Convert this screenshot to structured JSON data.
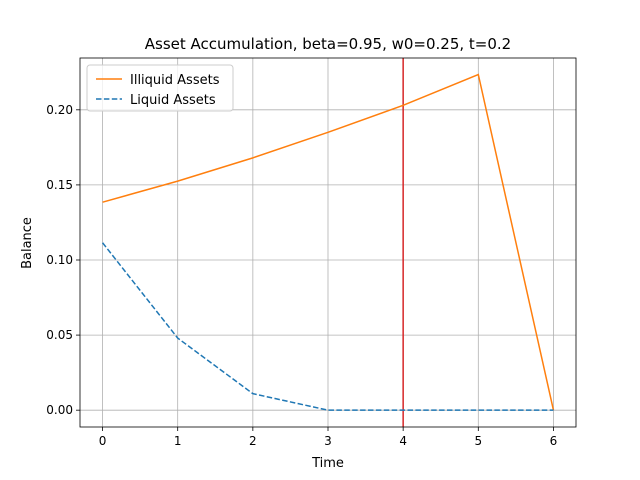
{
  "chart_data": {
    "type": "line",
    "title": "Asset Accumulation, beta=0.95, w0=0.25, t=0.2",
    "xlabel": "Time",
    "ylabel": "Balance",
    "x": [
      0,
      1,
      2,
      3,
      4,
      5,
      6
    ],
    "xlim": [
      -0.3,
      6.3
    ],
    "ylim": [
      -0.0112,
      0.2345
    ],
    "xticks": [
      0,
      1,
      2,
      3,
      4,
      5,
      6
    ],
    "xtick_labels": [
      "0",
      "1",
      "2",
      "3",
      "4",
      "5",
      "6"
    ],
    "yticks": [
      0.0,
      0.05,
      0.1,
      0.15,
      0.2
    ],
    "ytick_labels": [
      "0.00",
      "0.05",
      "0.10",
      "0.15",
      "0.20"
    ],
    "grid": true,
    "legend_position": "top-left",
    "series": [
      {
        "name": "Illiquid Assets",
        "values": [
          0.1385,
          0.1525,
          0.168,
          0.185,
          0.203,
          0.2235,
          0.0
        ],
        "color": "#ff7f0e",
        "style": "solid"
      },
      {
        "name": "Liquid Assets",
        "values": [
          0.1115,
          0.048,
          0.011,
          0.0,
          0.0,
          0.0,
          0.0
        ],
        "color": "#1f77b4",
        "style": "dashed"
      }
    ],
    "annotations": [
      {
        "type": "vertical-line",
        "x": 4,
        "color": "#d62728"
      }
    ]
  }
}
